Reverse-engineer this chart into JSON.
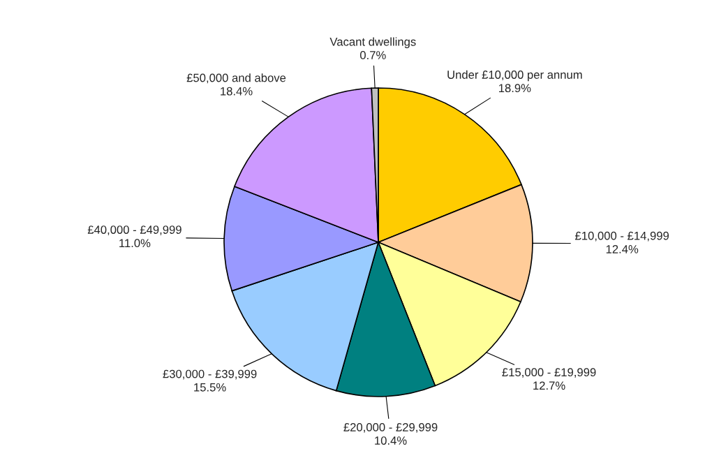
{
  "chart_data": {
    "type": "pie",
    "categories": [
      "Under £10,000 per annum",
      "£10,000 - £14,999",
      "£15,000 - £19,999",
      "£20,000 - £29,999",
      "£30,000 - £39,999",
      "£40,000 - £49,999",
      "£50,000 and above",
      "Vacant dwellings"
    ],
    "values": [
      18.9,
      12.4,
      12.7,
      10.4,
      15.5,
      11.0,
      18.4,
      0.7
    ],
    "value_labels": [
      "18.9%",
      "12.4%",
      "12.7%",
      "10.4%",
      "15.5%",
      "11.0%",
      "18.4%",
      "0.7%"
    ],
    "colors": [
      "#ffcc00",
      "#ffcc99",
      "#ffff99",
      "#008080",
      "#99ccff",
      "#9999ff",
      "#cc99ff",
      "#c0c0c0"
    ],
    "legend": false
  }
}
